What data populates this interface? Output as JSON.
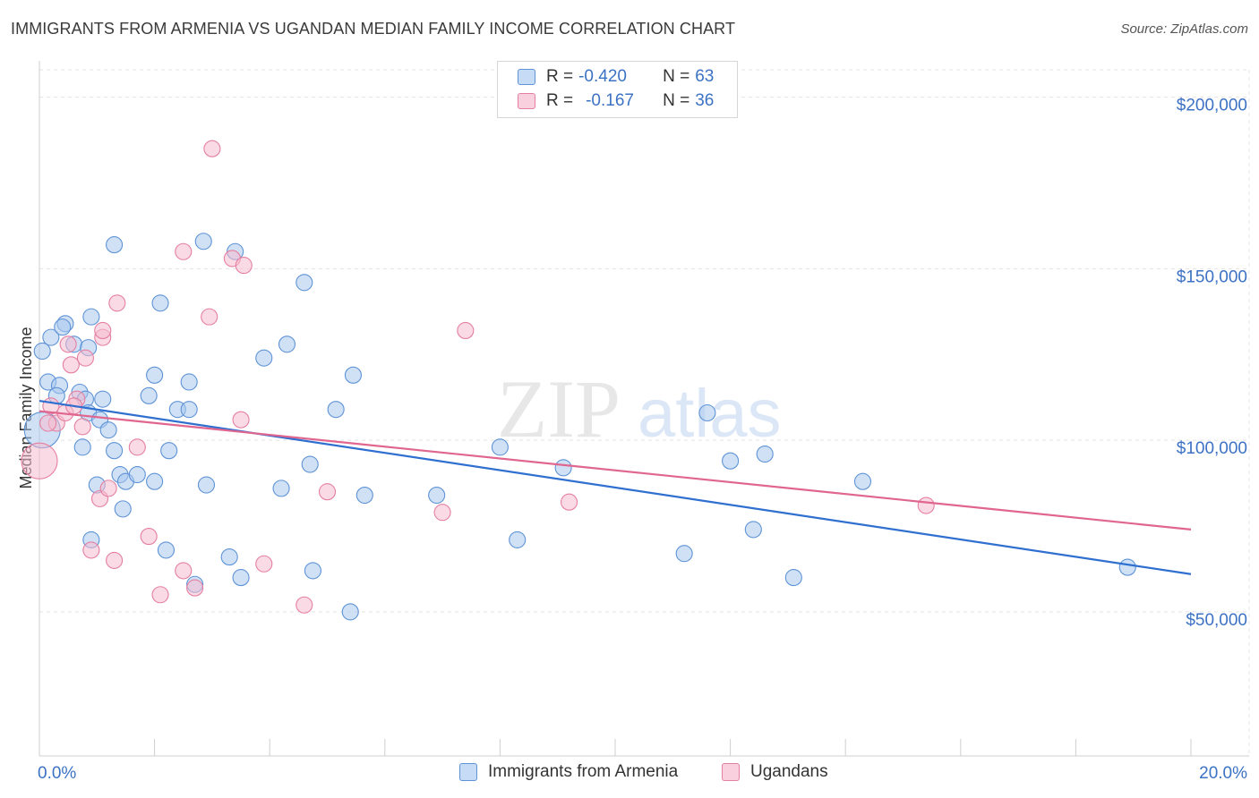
{
  "title": "IMMIGRANTS FROM ARMENIA VS UGANDAN MEDIAN FAMILY INCOME CORRELATION CHART",
  "source": "Source: ZipAtlas.com",
  "colors": {
    "blue_fill": "#a9c8ef",
    "blue_stroke": "#5e93d6",
    "blue_line": "#2f6fd0",
    "pink_fill": "#f6bccd",
    "pink_stroke": "#e57fa0",
    "pink_line": "#e0668f",
    "label_blue": "#3c72c4"
  },
  "legend": {
    "row1": {
      "r_label": "R = ",
      "r_value": "-0.420",
      "n_label": "N = ",
      "n_value": "63"
    },
    "row2": {
      "r_label": "R = ",
      "r_value": "-0.167",
      "n_label": "N = ",
      "n_value": "36"
    }
  },
  "chart_data": {
    "type": "scatter",
    "title": "IMMIGRANTS FROM ARMENIA VS UGANDAN MEDIAN FAMILY INCOME CORRELATION CHART",
    "xlabel": "",
    "ylabel": "Median Family Income",
    "xlim": [
      0,
      20
    ],
    "ylim": [
      8000,
      208000
    ],
    "x_tick_labels": [
      "0.0%",
      "20.0%"
    ],
    "y_ticks": [
      50000,
      100000,
      150000,
      200000
    ],
    "y_tick_labels": [
      "$50,000",
      "$100,000",
      "$150,000",
      "$200,000"
    ],
    "watermark": {
      "zip": "ZIP",
      "atlas": "atlas"
    },
    "series": [
      {
        "name": "Immigrants from Armenia",
        "color": "#5e93d6",
        "trend": {
          "x": [
            0,
            20
          ],
          "y": [
            111500,
            61000
          ]
        },
        "points": [
          [
            0.05,
            126000
          ],
          [
            0.15,
            117000
          ],
          [
            0.2,
            130000
          ],
          [
            0.35,
            116000
          ],
          [
            0.3,
            113000
          ],
          [
            0.45,
            134000
          ],
          [
            0.4,
            133000
          ],
          [
            0.6,
            128000
          ],
          [
            0.7,
            114000
          ],
          [
            0.8,
            112000
          ],
          [
            0.85,
            108000
          ],
          [
            0.75,
            98000
          ],
          [
            0.85,
            127000
          ],
          [
            0.9,
            136000
          ],
          [
            1.0,
            87000
          ],
          [
            1.05,
            106000
          ],
          [
            1.1,
            112000
          ],
          [
            1.2,
            103000
          ],
          [
            1.3,
            97000
          ],
          [
            1.3,
            157000
          ],
          [
            1.4,
            90000
          ],
          [
            1.5,
            88000
          ],
          [
            1.45,
            80000
          ],
          [
            1.7,
            90000
          ],
          [
            1.9,
            113000
          ],
          [
            2.0,
            119000
          ],
          [
            2.1,
            140000
          ],
          [
            2.0,
            88000
          ],
          [
            2.25,
            97000
          ],
          [
            2.4,
            109000
          ],
          [
            2.6,
            117000
          ],
          [
            2.6,
            109000
          ],
          [
            2.7,
            58000
          ],
          [
            2.85,
            158000
          ],
          [
            2.9,
            87000
          ],
          [
            2.2,
            68000
          ],
          [
            0.9,
            71000
          ],
          [
            3.3,
            66000
          ],
          [
            3.4,
            155000
          ],
          [
            3.5,
            60000
          ],
          [
            3.9,
            124000
          ],
          [
            4.2,
            86000
          ],
          [
            4.3,
            128000
          ],
          [
            4.6,
            146000
          ],
          [
            4.7,
            93000
          ],
          [
            4.75,
            62000
          ],
          [
            5.15,
            109000
          ],
          [
            5.4,
            50000
          ],
          [
            5.45,
            119000
          ],
          [
            5.65,
            84000
          ],
          [
            6.9,
            84000
          ],
          [
            8.0,
            98000
          ],
          [
            8.3,
            71000
          ],
          [
            9.1,
            92000
          ],
          [
            11.2,
            67000
          ],
          [
            11.6,
            108000
          ],
          [
            12.0,
            94000
          ],
          [
            12.4,
            74000
          ],
          [
            12.6,
            96000
          ],
          [
            13.1,
            60000
          ],
          [
            14.3,
            88000
          ],
          [
            18.9,
            63000
          ],
          [
            0.05,
            103000
          ]
        ]
      },
      {
        "name": "Ugandans",
        "color": "#e57fa0",
        "trend": {
          "x": [
            0,
            20
          ],
          "y": [
            108500,
            74000
          ]
        },
        "points": [
          [
            0.0,
            94000
          ],
          [
            0.2,
            110000
          ],
          [
            0.3,
            105000
          ],
          [
            0.45,
            108000
          ],
          [
            0.5,
            128000
          ],
          [
            0.55,
            122000
          ],
          [
            0.65,
            112000
          ],
          [
            0.75,
            104000
          ],
          [
            0.8,
            124000
          ],
          [
            0.9,
            68000
          ],
          [
            1.05,
            83000
          ],
          [
            1.1,
            130000
          ],
          [
            1.2,
            86000
          ],
          [
            1.35,
            140000
          ],
          [
            1.1,
            132000
          ],
          [
            1.7,
            98000
          ],
          [
            1.9,
            72000
          ],
          [
            2.1,
            55000
          ],
          [
            2.5,
            155000
          ],
          [
            2.5,
            62000
          ],
          [
            2.7,
            57000
          ],
          [
            2.95,
            136000
          ],
          [
            3.0,
            185000
          ],
          [
            3.35,
            153000
          ],
          [
            3.55,
            151000
          ],
          [
            3.5,
            106000
          ],
          [
            3.9,
            64000
          ],
          [
            4.6,
            52000
          ],
          [
            5.0,
            85000
          ],
          [
            7.0,
            79000
          ],
          [
            7.4,
            132000
          ],
          [
            9.2,
            82000
          ],
          [
            15.4,
            81000
          ],
          [
            1.3,
            65000
          ],
          [
            0.15,
            105000
          ],
          [
            0.6,
            110000
          ]
        ]
      }
    ]
  }
}
